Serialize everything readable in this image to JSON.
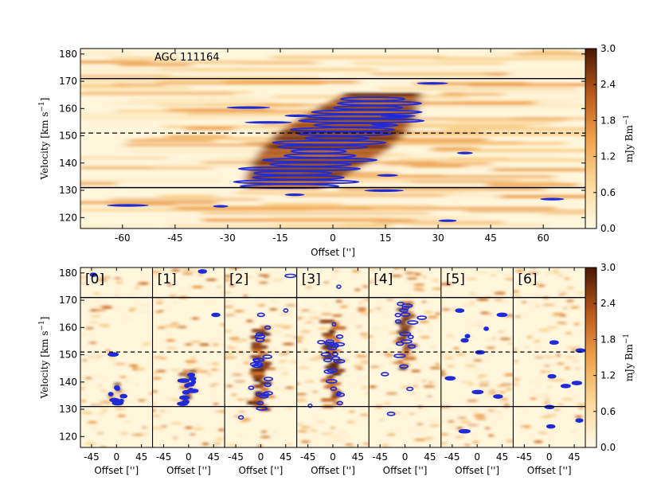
{
  "chart_data": [
    {
      "type": "heatmap",
      "panel": "top",
      "annotation": "AGC 111164",
      "xlabel": "Offset ['']",
      "ylabel": "Velocity [km s",
      "ylabel_sup": "−1",
      "ylabel_close": "]",
      "xlim": [
        -72,
        72
      ],
      "ylim": [
        116,
        182
      ],
      "xticks": [
        -60,
        -45,
        -30,
        -15,
        0,
        15,
        30,
        45,
        60
      ],
      "yticks": [
        120,
        130,
        140,
        150,
        160,
        170,
        180
      ],
      "hlines_solid": [
        131,
        171
      ],
      "hline_dashed": 151,
      "colorbar": {
        "label": "mJy Bm",
        "label_sup": "−1",
        "ticks": [
          0.0,
          0.6,
          1.2,
          1.8,
          2.4,
          3.0
        ],
        "range": [
          0.0,
          3.0
        ]
      }
    },
    {
      "type": "heatmap",
      "panel": "bottom",
      "subpanels": [
        "[0]",
        "[1]",
        "[2]",
        "[3]",
        "[4]",
        "[5]",
        "[6]"
      ],
      "xlabel": "Offset ['']",
      "ylabel": "Velocity [km s",
      "ylabel_sup": "−1",
      "ylabel_close": "]",
      "xlim": [
        -65,
        65
      ],
      "ylim": [
        116,
        182
      ],
      "xticks": [
        -45,
        0,
        45
      ],
      "yticks": [
        120,
        130,
        140,
        150,
        160,
        170,
        180
      ],
      "hlines_solid": [
        131,
        171
      ],
      "hline_dashed": 151,
      "colorbar": {
        "label": "mJy Bm",
        "label_sup": "−1",
        "ticks": [
          0.0,
          0.6,
          1.2,
          1.8,
          2.4,
          3.0
        ],
        "range": [
          0.0,
          3.0
        ]
      }
    }
  ],
  "colors": {
    "cmap_low": "#fff7e0",
    "cmap_mid": "#f0a24a",
    "cmap_high": "#5a1e06",
    "contour": "#1f2ad8",
    "frame": "#000000"
  }
}
